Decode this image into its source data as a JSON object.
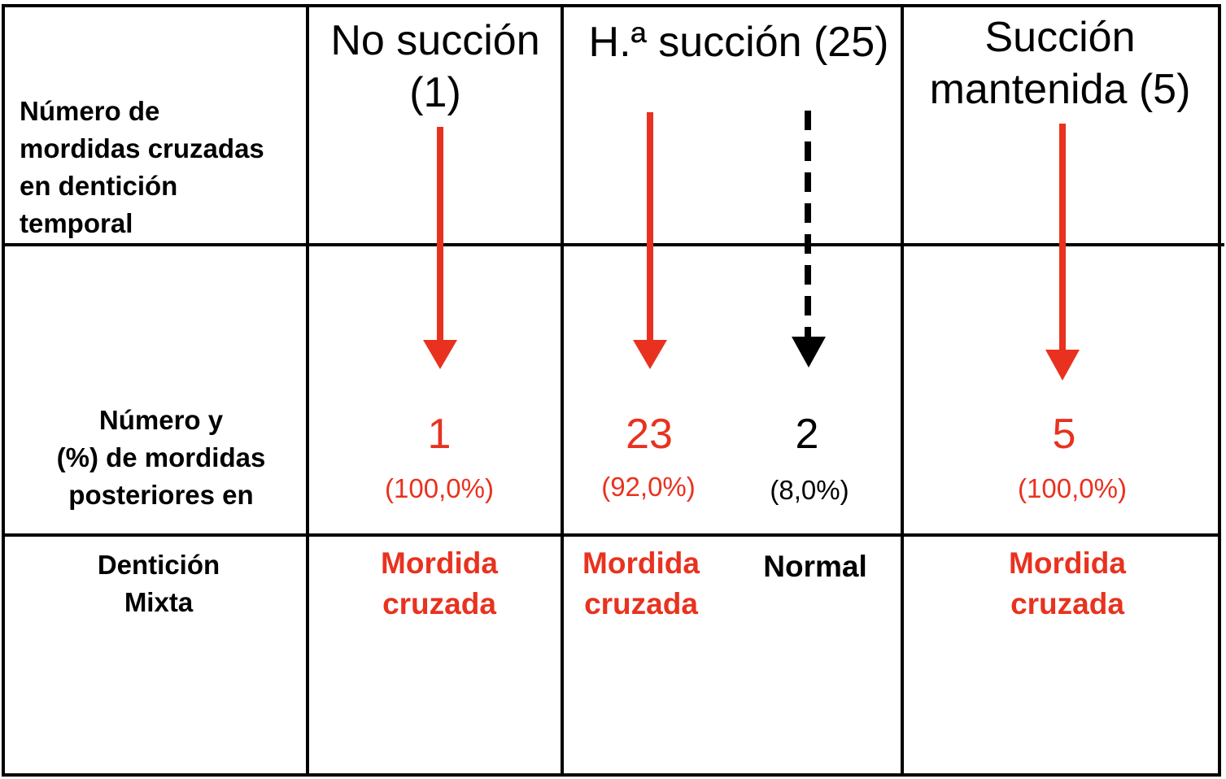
{
  "colors": {
    "red": "#e8321f",
    "black": "#000000"
  },
  "headers": {
    "no_succion": [
      "No succión",
      "(1)"
    ],
    "habito_succion": "H.ª succión (25)",
    "succion_mantenida": [
      "Succión",
      "mantenida (5)"
    ]
  },
  "row_labels": {
    "primary": [
      "Número de",
      "mordidas cruzadas",
      "en dentición",
      "temporal"
    ],
    "count": [
      "Número y",
      "(%) de mordidas",
      "posteriores en"
    ],
    "mixed": [
      "Dentición",
      "Mixta"
    ]
  },
  "cells": {
    "no_succion": {
      "count": "1",
      "pct": "(100,0%)",
      "outcome": [
        "Mordida",
        "cruzada"
      ]
    },
    "habito_cruzada": {
      "count": "23",
      "pct": "(92,0%)",
      "outcome": [
        "Mordida",
        "cruzada"
      ]
    },
    "habito_normal": {
      "count": "2",
      "pct": "(8,0%)",
      "outcome": "Normal"
    },
    "succion_mantenida": {
      "count": "5",
      "pct": "(100,0%)",
      "outcome": [
        "Mordida",
        "cruzada"
      ]
    }
  },
  "arrows": [
    {
      "name": "no-succion-arrow",
      "style": "solid",
      "color": "red"
    },
    {
      "name": "habito-cruzada-arrow",
      "style": "solid",
      "color": "red"
    },
    {
      "name": "habito-normal-arrow",
      "style": "dashed",
      "color": "black"
    },
    {
      "name": "succion-mantenida-arrow",
      "style": "solid",
      "color": "red"
    }
  ]
}
